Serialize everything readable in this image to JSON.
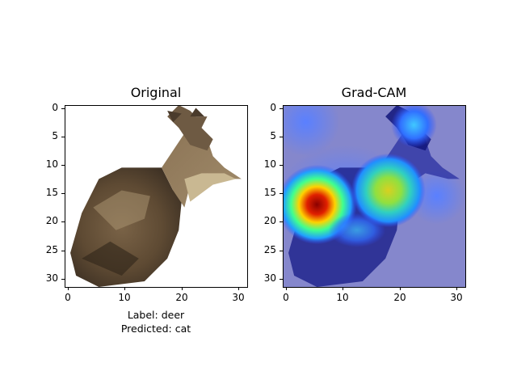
{
  "figure": {
    "panels": [
      {
        "title": "Original",
        "y_ticks": [
          "0",
          "5",
          "10",
          "15",
          "20",
          "25",
          "30"
        ],
        "x_ticks": [
          "0",
          "10",
          "20",
          "30"
        ],
        "image": "low-resolution photo of a deer on white background"
      },
      {
        "title": "Grad-CAM",
        "y_ticks": [
          "0",
          "5",
          "10",
          "15",
          "20",
          "25",
          "30"
        ],
        "x_ticks": [
          "0",
          "10",
          "20",
          "30"
        ],
        "image": "deer photo overlaid with jet colormap heatmap"
      }
    ],
    "label_line": "Label: deer",
    "predicted_line": "Predicted: cat"
  }
}
